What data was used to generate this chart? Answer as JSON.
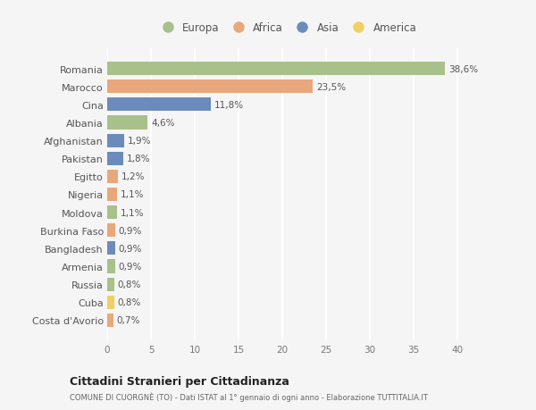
{
  "countries": [
    "Romania",
    "Marocco",
    "Cina",
    "Albania",
    "Afghanistan",
    "Pakistan",
    "Egitto",
    "Nigeria",
    "Moldova",
    "Burkina Faso",
    "Bangladesh",
    "Armenia",
    "Russia",
    "Cuba",
    "Costa d'Avorio"
  ],
  "values": [
    38.6,
    23.5,
    11.8,
    4.6,
    1.9,
    1.8,
    1.2,
    1.1,
    1.1,
    0.9,
    0.9,
    0.9,
    0.8,
    0.8,
    0.7
  ],
  "labels": [
    "38,6%",
    "23,5%",
    "11,8%",
    "4,6%",
    "1,9%",
    "1,8%",
    "1,2%",
    "1,1%",
    "1,1%",
    "0,9%",
    "0,9%",
    "0,9%",
    "0,8%",
    "0,8%",
    "0,7%"
  ],
  "continents": [
    "Europa",
    "Africa",
    "Asia",
    "Europa",
    "Asia",
    "Asia",
    "Africa",
    "Africa",
    "Europa",
    "Africa",
    "Asia",
    "Europa",
    "Europa",
    "America",
    "Africa"
  ],
  "continent_colors": {
    "Europa": "#a8c08a",
    "Africa": "#e8a87c",
    "Asia": "#6b8cba",
    "America": "#f0d060"
  },
  "legend_order": [
    "Europa",
    "Africa",
    "Asia",
    "America"
  ],
  "title": "Cittadini Stranieri per Cittadinanza",
  "subtitle": "COMUNE DI CUORGNÈ (TO) - Dati ISTAT al 1° gennaio di ogni anno - Elaborazione TUTTITALIA.IT",
  "xlim": [
    0,
    41
  ],
  "xticks": [
    0,
    5,
    10,
    15,
    20,
    25,
    30,
    35,
    40
  ],
  "background_color": "#f5f5f5",
  "grid_color": "#ffffff",
  "bar_height": 0.75
}
